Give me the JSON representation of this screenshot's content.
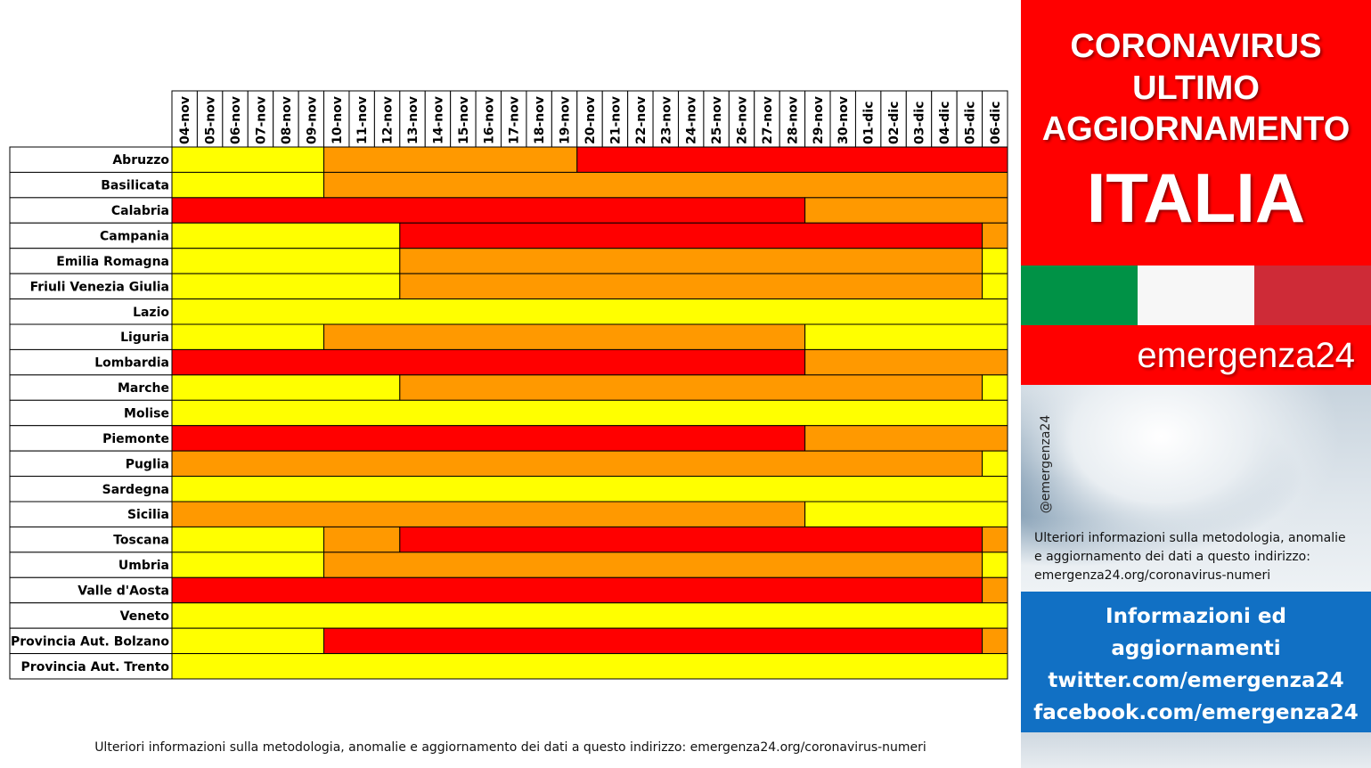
{
  "colors": {
    "giallo": "#ffff00",
    "arancione": "#ff9900",
    "rosso": "#ff0000",
    "grid": "#000000"
  },
  "chart_data": {
    "type": "heatmap",
    "title": "",
    "xlabel": "",
    "ylabel": "",
    "dates": [
      "04-nov",
      "05-nov",
      "06-nov",
      "07-nov",
      "08-nov",
      "09-nov",
      "10-nov",
      "11-nov",
      "12-nov",
      "13-nov",
      "14-nov",
      "15-nov",
      "16-nov",
      "17-nov",
      "18-nov",
      "19-nov",
      "20-nov",
      "21-nov",
      "22-nov",
      "23-nov",
      "24-nov",
      "25-nov",
      "26-nov",
      "27-nov",
      "28-nov",
      "29-nov",
      "30-nov",
      "01-dic",
      "02-dic",
      "03-dic",
      "04-dic",
      "05-dic",
      "06-dic"
    ],
    "zones": [
      "giallo",
      "arancione",
      "rosso"
    ],
    "regions": [
      {
        "name": "Abruzzo",
        "segments": [
          {
            "zone": "giallo",
            "from": "04-nov",
            "to": "09-nov"
          },
          {
            "zone": "arancione",
            "from": "10-nov",
            "to": "19-nov"
          },
          {
            "zone": "rosso",
            "from": "20-nov",
            "to": "06-dic"
          }
        ]
      },
      {
        "name": "Basilicata",
        "segments": [
          {
            "zone": "giallo",
            "from": "04-nov",
            "to": "09-nov"
          },
          {
            "zone": "arancione",
            "from": "10-nov",
            "to": "06-dic"
          }
        ]
      },
      {
        "name": "Calabria",
        "segments": [
          {
            "zone": "rosso",
            "from": "04-nov",
            "to": "28-nov"
          },
          {
            "zone": "arancione",
            "from": "29-nov",
            "to": "06-dic"
          }
        ]
      },
      {
        "name": "Campania",
        "segments": [
          {
            "zone": "giallo",
            "from": "04-nov",
            "to": "12-nov"
          },
          {
            "zone": "rosso",
            "from": "13-nov",
            "to": "05-dic"
          },
          {
            "zone": "arancione",
            "from": "06-dic",
            "to": "06-dic"
          }
        ]
      },
      {
        "name": "Emilia Romagna",
        "segments": [
          {
            "zone": "giallo",
            "from": "04-nov",
            "to": "12-nov"
          },
          {
            "zone": "arancione",
            "from": "13-nov",
            "to": "05-dic"
          },
          {
            "zone": "giallo",
            "from": "06-dic",
            "to": "06-dic"
          }
        ]
      },
      {
        "name": "Friuli Venezia Giulia",
        "segments": [
          {
            "zone": "giallo",
            "from": "04-nov",
            "to": "12-nov"
          },
          {
            "zone": "arancione",
            "from": "13-nov",
            "to": "05-dic"
          },
          {
            "zone": "giallo",
            "from": "06-dic",
            "to": "06-dic"
          }
        ]
      },
      {
        "name": "Lazio",
        "segments": [
          {
            "zone": "giallo",
            "from": "04-nov",
            "to": "06-dic"
          }
        ]
      },
      {
        "name": "Liguria",
        "segments": [
          {
            "zone": "giallo",
            "from": "04-nov",
            "to": "09-nov"
          },
          {
            "zone": "arancione",
            "from": "10-nov",
            "to": "28-nov"
          },
          {
            "zone": "giallo",
            "from": "29-nov",
            "to": "06-dic"
          }
        ]
      },
      {
        "name": "Lombardia",
        "segments": [
          {
            "zone": "rosso",
            "from": "04-nov",
            "to": "28-nov"
          },
          {
            "zone": "arancione",
            "from": "29-nov",
            "to": "06-dic"
          }
        ]
      },
      {
        "name": "Marche",
        "segments": [
          {
            "zone": "giallo",
            "from": "04-nov",
            "to": "12-nov"
          },
          {
            "zone": "arancione",
            "from": "13-nov",
            "to": "05-dic"
          },
          {
            "zone": "giallo",
            "from": "06-dic",
            "to": "06-dic"
          }
        ]
      },
      {
        "name": "Molise",
        "segments": [
          {
            "zone": "giallo",
            "from": "04-nov",
            "to": "06-dic"
          }
        ]
      },
      {
        "name": "Piemonte",
        "segments": [
          {
            "zone": "rosso",
            "from": "04-nov",
            "to": "28-nov"
          },
          {
            "zone": "arancione",
            "from": "29-nov",
            "to": "06-dic"
          }
        ]
      },
      {
        "name": "Puglia",
        "segments": [
          {
            "zone": "arancione",
            "from": "04-nov",
            "to": "05-dic"
          },
          {
            "zone": "giallo",
            "from": "06-dic",
            "to": "06-dic"
          }
        ]
      },
      {
        "name": "Sardegna",
        "segments": [
          {
            "zone": "giallo",
            "from": "04-nov",
            "to": "06-dic"
          }
        ]
      },
      {
        "name": "Sicilia",
        "segments": [
          {
            "zone": "arancione",
            "from": "04-nov",
            "to": "28-nov"
          },
          {
            "zone": "giallo",
            "from": "29-nov",
            "to": "06-dic"
          }
        ]
      },
      {
        "name": "Toscana",
        "segments": [
          {
            "zone": "giallo",
            "from": "04-nov",
            "to": "09-nov"
          },
          {
            "zone": "arancione",
            "from": "10-nov",
            "to": "12-nov"
          },
          {
            "zone": "rosso",
            "from": "13-nov",
            "to": "05-dic"
          },
          {
            "zone": "arancione",
            "from": "06-dic",
            "to": "06-dic"
          }
        ]
      },
      {
        "name": "Umbria",
        "segments": [
          {
            "zone": "giallo",
            "from": "04-nov",
            "to": "09-nov"
          },
          {
            "zone": "arancione",
            "from": "10-nov",
            "to": "05-dic"
          },
          {
            "zone": "giallo",
            "from": "06-dic",
            "to": "06-dic"
          }
        ]
      },
      {
        "name": "Valle d'Aosta",
        "segments": [
          {
            "zone": "rosso",
            "from": "04-nov",
            "to": "05-dic"
          },
          {
            "zone": "arancione",
            "from": "06-dic",
            "to": "06-dic"
          }
        ]
      },
      {
        "name": "Veneto",
        "segments": [
          {
            "zone": "giallo",
            "from": "04-nov",
            "to": "06-dic"
          }
        ]
      },
      {
        "name": "Provincia Aut. Bolzano",
        "segments": [
          {
            "zone": "giallo",
            "from": "04-nov",
            "to": "09-nov"
          },
          {
            "zone": "rosso",
            "from": "10-nov",
            "to": "05-dic"
          },
          {
            "zone": "arancione",
            "from": "06-dic",
            "to": "06-dic"
          }
        ]
      },
      {
        "name": "Provincia Aut. Trento",
        "segments": [
          {
            "zone": "giallo",
            "from": "04-nov",
            "to": "06-dic"
          }
        ]
      }
    ]
  },
  "footnote": "Ulteriori informazioni sulla metodologia, anomalie e aggiornamento dei dati a questo indirizzo: emergenza24.org/coronavirus-numeri",
  "panel": {
    "headline_1": "CORONAVIRUS",
    "headline_2": "ULTIMO",
    "headline_3": "AGGIORNAMENTO",
    "headline_4": "ITALIA",
    "brand": "emergenza24",
    "handle": "@emergenza24",
    "info_1": "Ulteriori informazioni sulla metodologia, anomalie",
    "info_2": "e aggiornamento dei dati a questo indirizzo:",
    "info_3": "emergenza24.org/coronavirus-numeri",
    "links_1": "Informazioni ed",
    "links_2": "aggiornamenti",
    "links_3": "twitter.com/emergenza24",
    "links_4": "facebook.com/emergenza24"
  }
}
